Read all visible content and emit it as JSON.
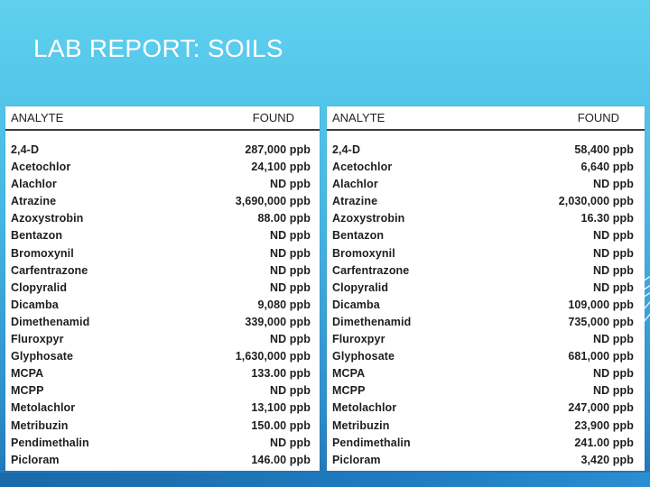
{
  "slide": {
    "title": "LAB REPORT: SOILS"
  },
  "tables": [
    {
      "header": {
        "analyte": "ANALYTE",
        "found": "FOUND"
      },
      "rows": [
        {
          "analyte": "2,4-D",
          "found": "287,000 ppb"
        },
        {
          "analyte": "Acetochlor",
          "found": "24,100 ppb"
        },
        {
          "analyte": "Alachlor",
          "found": "ND ppb"
        },
        {
          "analyte": "Atrazine",
          "found": "3,690,000 ppb"
        },
        {
          "analyte": "Azoxystrobin",
          "found": "88.00 ppb"
        },
        {
          "analyte": "Bentazon",
          "found": "ND ppb"
        },
        {
          "analyte": "Bromoxynil",
          "found": "ND ppb"
        },
        {
          "analyte": "Carfentrazone",
          "found": "ND ppb"
        },
        {
          "analyte": "Clopyralid",
          "found": "ND ppb"
        },
        {
          "analyte": "Dicamba",
          "found": "9,080 ppb"
        },
        {
          "analyte": "Dimethenamid",
          "found": "339,000 ppb"
        },
        {
          "analyte": "Fluroxpyr",
          "found": "ND ppb"
        },
        {
          "analyte": "Glyphosate",
          "found": "1,630,000 ppb"
        },
        {
          "analyte": "MCPA",
          "found": "133.00 ppb"
        },
        {
          "analyte": "MCPP",
          "found": "ND ppb"
        },
        {
          "analyte": "Metolachlor",
          "found": "13,100 ppb"
        },
        {
          "analyte": "Metribuzin",
          "found": "150.00 ppb"
        },
        {
          "analyte": "Pendimethalin",
          "found": "ND ppb"
        },
        {
          "analyte": "Picloram",
          "found": "146.00 ppb"
        }
      ]
    },
    {
      "header": {
        "analyte": "ANALYTE",
        "found": "FOUND"
      },
      "rows": [
        {
          "analyte": "2,4-D",
          "found": "58,400 ppb"
        },
        {
          "analyte": "Acetochlor",
          "found": "6,640 ppb"
        },
        {
          "analyte": "Alachlor",
          "found": "ND ppb"
        },
        {
          "analyte": "Atrazine",
          "found": "2,030,000 ppb"
        },
        {
          "analyte": "Azoxystrobin",
          "found": "16.30 ppb"
        },
        {
          "analyte": "Bentazon",
          "found": "ND ppb"
        },
        {
          "analyte": "Bromoxynil",
          "found": "ND ppb"
        },
        {
          "analyte": "Carfentrazone",
          "found": "ND ppb"
        },
        {
          "analyte": "Clopyralid",
          "found": "ND ppb"
        },
        {
          "analyte": "Dicamba",
          "found": "109,000 ppb"
        },
        {
          "analyte": "Dimethenamid",
          "found": "735,000 ppb"
        },
        {
          "analyte": "Fluroxpyr",
          "found": "ND ppb"
        },
        {
          "analyte": "Glyphosate",
          "found": "681,000 ppb"
        },
        {
          "analyte": "MCPA",
          "found": "ND ppb"
        },
        {
          "analyte": "MCPP",
          "found": "ND ppb"
        },
        {
          "analyte": "Metolachlor",
          "found": "247,000 ppb"
        },
        {
          "analyte": "Metribuzin",
          "found": "23,900 ppb"
        },
        {
          "analyte": "Pendimethalin",
          "found": "241.00 ppb"
        },
        {
          "analyte": "Picloram",
          "found": "3,420 ppb"
        }
      ]
    }
  ]
}
